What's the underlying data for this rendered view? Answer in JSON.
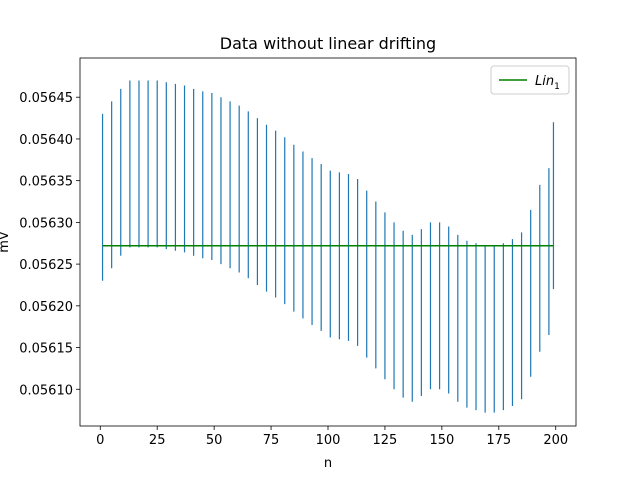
{
  "chart_data": {
    "type": "errorbar",
    "title": "Data without linear drifting",
    "xlabel": "n",
    "ylabel": "mV",
    "xlim": [
      -8.9,
      208.9
    ],
    "xticks": [
      0,
      25,
      50,
      75,
      100,
      125,
      150,
      175,
      200
    ],
    "ylim": [
      0.056056,
      0.056497
    ],
    "yticks": [
      {
        "value": 0.0561,
        "label": "0.05610"
      },
      {
        "value": 0.05615,
        "label": "0.05615"
      },
      {
        "value": 0.0562,
        "label": "0.05620"
      },
      {
        "value": 0.05625,
        "label": "0.05625"
      },
      {
        "value": 0.0563,
        "label": "0.05630"
      },
      {
        "value": 0.05635,
        "label": "0.05635"
      },
      {
        "value": 0.0564,
        "label": "0.05640"
      },
      {
        "value": 0.05645,
        "label": "0.05645"
      }
    ],
    "legend": "upper right",
    "series": [
      {
        "kind": "errorbar",
        "color": "#1f77b4",
        "error": 0.0001,
        "x": [
          1,
          5,
          9,
          13,
          17,
          21,
          25,
          29,
          33,
          37,
          41,
          45,
          49,
          53,
          57,
          61,
          65,
          69,
          73,
          77,
          81,
          85,
          89,
          93,
          97,
          101,
          105,
          109,
          113,
          117,
          121,
          125,
          129,
          133,
          137,
          141,
          145,
          149,
          153,
          157,
          161,
          165,
          169,
          173,
          177,
          181,
          185,
          189,
          193,
          197,
          199
        ],
        "values": [
          0.05633,
          0.056345,
          0.05636,
          0.05637,
          0.05637,
          0.05637,
          0.05637,
          0.056368,
          0.056366,
          0.056364,
          0.05636,
          0.056357,
          0.056355,
          0.05635,
          0.056345,
          0.05634,
          0.056333,
          0.056325,
          0.056317,
          0.05631,
          0.056302,
          0.056293,
          0.056285,
          0.056277,
          0.05627,
          0.056262,
          0.05626,
          0.056258,
          0.056252,
          0.056238,
          0.056225,
          0.056212,
          0.0562,
          0.05619,
          0.056185,
          0.056192,
          0.0562,
          0.0562,
          0.056195,
          0.056185,
          0.056178,
          0.056175,
          0.056172,
          0.056172,
          0.056175,
          0.05618,
          0.056188,
          0.056215,
          0.056245,
          0.056265,
          0.05632
        ]
      },
      {
        "kind": "line",
        "name": "Lin",
        "subscript": "1",
        "color": "#008000",
        "x": [
          1,
          199
        ],
        "values": [
          0.056272,
          0.056272
        ]
      }
    ]
  }
}
